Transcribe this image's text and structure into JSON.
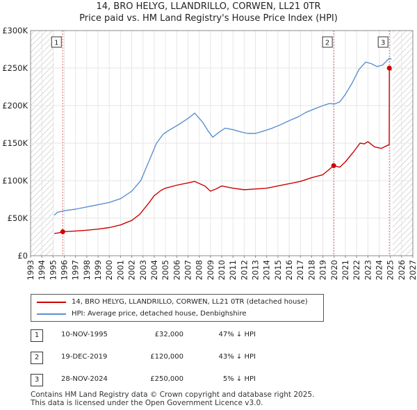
{
  "chart_data": {
    "type": "line",
    "title": "14, BRO HELYG, LLANDRILLO, CORWEN, LL21 0TR",
    "subtitle": "Price paid vs. HM Land Registry's House Price Index (HPI)",
    "xlim": [
      1993,
      2027
    ],
    "ylim": [
      0,
      300000
    ],
    "x_ticks": [
      1993,
      1994,
      1995,
      1996,
      1997,
      1998,
      1999,
      2000,
      2001,
      2002,
      2003,
      2004,
      2005,
      2006,
      2007,
      2008,
      2009,
      2010,
      2011,
      2012,
      2013,
      2014,
      2015,
      2016,
      2017,
      2018,
      2019,
      2020,
      2021,
      2022,
      2023,
      2024,
      2025,
      2026,
      2027
    ],
    "y_ticks": [
      {
        "value": 0,
        "label": "£0"
      },
      {
        "value": 50000,
        "label": "£50K"
      },
      {
        "value": 100000,
        "label": "£100K"
      },
      {
        "value": 150000,
        "label": "£150K"
      },
      {
        "value": 200000,
        "label": "£200K"
      },
      {
        "value": 250000,
        "label": "£250K"
      },
      {
        "value": 300000,
        "label": "£300K"
      }
    ],
    "hatch_ranges": [
      [
        1993,
        1995.1
      ],
      [
        2025.2,
        2027
      ]
    ],
    "series": [
      {
        "name": "14, BRO HELYG, LLANDRILLO, CORWEN, LL21 0TR (detached house)",
        "color": "#cc0000",
        "points": [
          [
            1995.1,
            29500
          ],
          [
            1995.5,
            30500
          ],
          [
            1995.86,
            32000
          ],
          [
            1996.5,
            32500
          ],
          [
            1997,
            33000
          ],
          [
            1998,
            34000
          ],
          [
            1999,
            35500
          ],
          [
            2000,
            37500
          ],
          [
            2001,
            41000
          ],
          [
            2002,
            47000
          ],
          [
            2002.7,
            55000
          ],
          [
            2003.5,
            70000
          ],
          [
            2004,
            80000
          ],
          [
            2004.6,
            87000
          ],
          [
            2005,
            90000
          ],
          [
            2006,
            94000
          ],
          [
            2007,
            97000
          ],
          [
            2007.6,
            99000
          ],
          [
            2008.5,
            93000
          ],
          [
            2009,
            86000
          ],
          [
            2009.5,
            89000
          ],
          [
            2010,
            93000
          ],
          [
            2011,
            90000
          ],
          [
            2012,
            88000
          ],
          [
            2013,
            89000
          ],
          [
            2014,
            90000
          ],
          [
            2015,
            93000
          ],
          [
            2016,
            96000
          ],
          [
            2017,
            99000
          ],
          [
            2018,
            104000
          ],
          [
            2019,
            108000
          ],
          [
            2019.96,
            120000
          ],
          [
            2020.5,
            118000
          ],
          [
            2021,
            125000
          ],
          [
            2021.7,
            138000
          ],
          [
            2022.3,
            150000
          ],
          [
            2022.7,
            149000
          ],
          [
            2023,
            152000
          ],
          [
            2023.6,
            145000
          ],
          [
            2024.2,
            143000
          ],
          [
            2024.6,
            146000
          ],
          [
            2024.9,
            148000
          ],
          [
            2024.91,
            250000
          ],
          [
            2025.1,
            247000
          ]
        ]
      },
      {
        "name": "HPI: Average price, detached house, Denbighshire",
        "color": "#5b8fcf",
        "points": [
          [
            1995.1,
            54000
          ],
          [
            1995.4,
            58000
          ],
          [
            1996,
            60000
          ],
          [
            1997,
            62000
          ],
          [
            1998,
            65000
          ],
          [
            1999,
            68000
          ],
          [
            2000,
            71000
          ],
          [
            2001,
            76000
          ],
          [
            2002,
            86000
          ],
          [
            2002.8,
            100000
          ],
          [
            2003.5,
            125000
          ],
          [
            2004.2,
            150000
          ],
          [
            2004.8,
            162000
          ],
          [
            2005.4,
            168000
          ],
          [
            2006.2,
            175000
          ],
          [
            2007,
            183000
          ],
          [
            2007.6,
            190000
          ],
          [
            2008.3,
            178000
          ],
          [
            2008.8,
            166000
          ],
          [
            2009.2,
            158000
          ],
          [
            2009.8,
            165000
          ],
          [
            2010.3,
            170000
          ],
          [
            2011,
            168000
          ],
          [
            2011.7,
            165000
          ],
          [
            2012.3,
            163000
          ],
          [
            2013,
            163000
          ],
          [
            2013.7,
            166000
          ],
          [
            2014.5,
            170000
          ],
          [
            2015.3,
            175000
          ],
          [
            2016,
            180000
          ],
          [
            2016.8,
            185000
          ],
          [
            2017.5,
            191000
          ],
          [
            2018.3,
            196000
          ],
          [
            2019,
            200000
          ],
          [
            2019.6,
            203000
          ],
          [
            2020,
            202000
          ],
          [
            2020.5,
            205000
          ],
          [
            2021,
            215000
          ],
          [
            2021.6,
            230000
          ],
          [
            2022.2,
            248000
          ],
          [
            2022.8,
            258000
          ],
          [
            2023.3,
            256000
          ],
          [
            2023.8,
            252000
          ],
          [
            2024.3,
            254000
          ],
          [
            2024.9,
            263000
          ],
          [
            2025.1,
            262000
          ]
        ]
      }
    ],
    "events": [
      {
        "n": "1",
        "x": 1995.86,
        "price": 32000,
        "date": "10-NOV-1995",
        "price_label": "£32,000",
        "hpi": "47% ↓ HPI"
      },
      {
        "n": "2",
        "x": 2019.96,
        "price": 120000,
        "date": "19-DEC-2019",
        "price_label": "£120,000",
        "hpi": "43% ↓ HPI"
      },
      {
        "n": "3",
        "x": 2024.91,
        "price": 250000,
        "date": "28-NOV-2024",
        "price_label": "£250,000",
        "hpi": "5% ↓ HPI"
      }
    ]
  },
  "footer": {
    "line1": "Contains HM Land Registry data © Crown copyright and database right 2025.",
    "line2": "This data is licensed under the Open Government Licence v3.0."
  }
}
